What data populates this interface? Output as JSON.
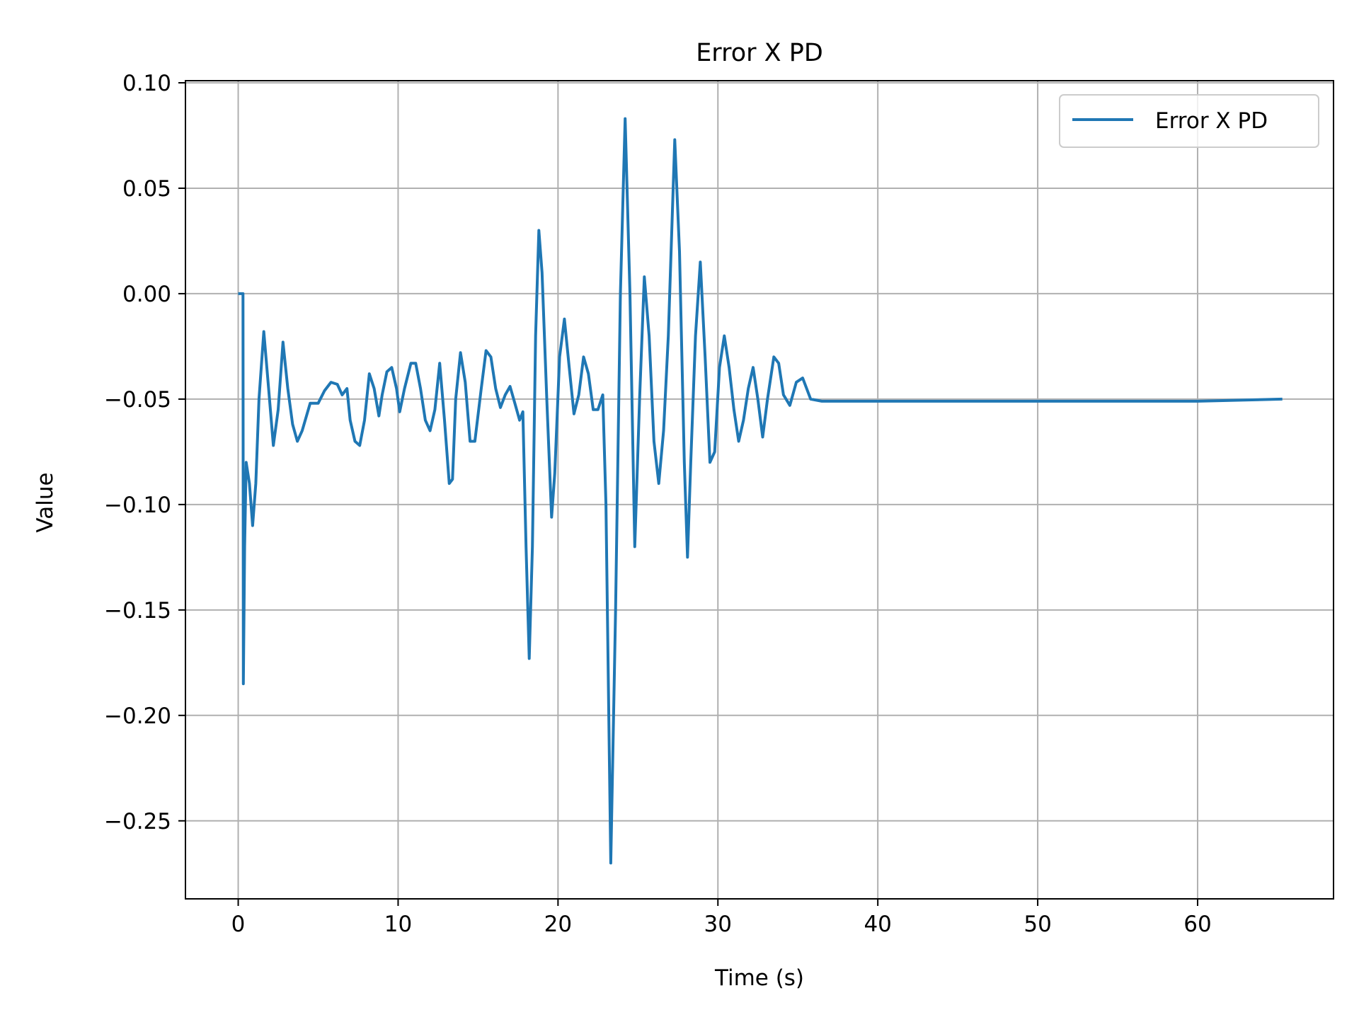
{
  "chart_data": {
    "type": "line",
    "title": "Error X PD",
    "xlabel": "Time (s)",
    "ylabel": "Value",
    "xlim": [
      -3.3,
      68.5
    ],
    "ylim": [
      -0.287,
      0.101
    ],
    "grid": true,
    "legend": {
      "position": "top-right"
    },
    "x_ticks": [
      {
        "value": 0,
        "label": "0"
      },
      {
        "value": 10,
        "label": "10"
      },
      {
        "value": 20,
        "label": "20"
      },
      {
        "value": 30,
        "label": "30"
      },
      {
        "value": 40,
        "label": "40"
      },
      {
        "value": 50,
        "label": "50"
      },
      {
        "value": 60,
        "label": "60"
      }
    ],
    "y_ticks": [
      {
        "value": 0.1,
        "label": "0.10"
      },
      {
        "value": 0.05,
        "label": "0.05"
      },
      {
        "value": 0.0,
        "label": "0.00"
      },
      {
        "value": -0.05,
        "label": "−0.05"
      },
      {
        "value": -0.1,
        "label": "−0.10"
      },
      {
        "value": -0.15,
        "label": "−0.15"
      },
      {
        "value": -0.2,
        "label": "−0.20"
      },
      {
        "value": -0.25,
        "label": "−0.25"
      }
    ],
    "series": [
      {
        "name": "Error X PD",
        "color": "#1f77b4",
        "points": [
          [
            0.0,
            0.0
          ],
          [
            0.3,
            0.0
          ],
          [
            0.32,
            -0.185
          ],
          [
            0.4,
            -0.12
          ],
          [
            0.5,
            -0.08
          ],
          [
            0.7,
            -0.09
          ],
          [
            0.9,
            -0.11
          ],
          [
            1.1,
            -0.09
          ],
          [
            1.3,
            -0.05
          ],
          [
            1.6,
            -0.018
          ],
          [
            1.9,
            -0.045
          ],
          [
            2.2,
            -0.072
          ],
          [
            2.5,
            -0.055
          ],
          [
            2.8,
            -0.023
          ],
          [
            3.1,
            -0.045
          ],
          [
            3.4,
            -0.062
          ],
          [
            3.7,
            -0.07
          ],
          [
            4.0,
            -0.065
          ],
          [
            4.5,
            -0.052
          ],
          [
            5.0,
            -0.052
          ],
          [
            5.4,
            -0.046
          ],
          [
            5.8,
            -0.042
          ],
          [
            6.2,
            -0.043
          ],
          [
            6.5,
            -0.048
          ],
          [
            6.8,
            -0.045
          ],
          [
            7.0,
            -0.06
          ],
          [
            7.3,
            -0.07
          ],
          [
            7.6,
            -0.072
          ],
          [
            7.9,
            -0.06
          ],
          [
            8.2,
            -0.038
          ],
          [
            8.5,
            -0.045
          ],
          [
            8.8,
            -0.058
          ],
          [
            9.0,
            -0.048
          ],
          [
            9.3,
            -0.037
          ],
          [
            9.6,
            -0.035
          ],
          [
            9.9,
            -0.045
          ],
          [
            10.1,
            -0.056
          ],
          [
            10.4,
            -0.045
          ],
          [
            10.8,
            -0.033
          ],
          [
            11.1,
            -0.033
          ],
          [
            11.4,
            -0.045
          ],
          [
            11.7,
            -0.06
          ],
          [
            12.0,
            -0.065
          ],
          [
            12.3,
            -0.055
          ],
          [
            12.6,
            -0.033
          ],
          [
            12.9,
            -0.06
          ],
          [
            13.2,
            -0.09
          ],
          [
            13.4,
            -0.088
          ],
          [
            13.6,
            -0.05
          ],
          [
            13.9,
            -0.028
          ],
          [
            14.2,
            -0.042
          ],
          [
            14.5,
            -0.07
          ],
          [
            14.8,
            -0.07
          ],
          [
            15.2,
            -0.045
          ],
          [
            15.5,
            -0.027
          ],
          [
            15.8,
            -0.03
          ],
          [
            16.1,
            -0.045
          ],
          [
            16.4,
            -0.054
          ],
          [
            16.7,
            -0.048
          ],
          [
            17.0,
            -0.044
          ],
          [
            17.3,
            -0.052
          ],
          [
            17.6,
            -0.06
          ],
          [
            17.8,
            -0.056
          ],
          [
            18.0,
            -0.12
          ],
          [
            18.2,
            -0.173
          ],
          [
            18.4,
            -0.12
          ],
          [
            18.6,
            -0.02
          ],
          [
            18.8,
            0.03
          ],
          [
            19.0,
            0.01
          ],
          [
            19.3,
            -0.05
          ],
          [
            19.6,
            -0.106
          ],
          [
            19.8,
            -0.085
          ],
          [
            20.1,
            -0.03
          ],
          [
            20.4,
            -0.012
          ],
          [
            20.7,
            -0.035
          ],
          [
            21.0,
            -0.057
          ],
          [
            21.3,
            -0.048
          ],
          [
            21.6,
            -0.03
          ],
          [
            21.9,
            -0.038
          ],
          [
            22.2,
            -0.055
          ],
          [
            22.5,
            -0.055
          ],
          [
            22.8,
            -0.048
          ],
          [
            23.0,
            -0.1
          ],
          [
            23.3,
            -0.27
          ],
          [
            23.6,
            -0.15
          ],
          [
            23.9,
            0.0
          ],
          [
            24.2,
            0.083
          ],
          [
            24.5,
            0.0
          ],
          [
            24.8,
            -0.12
          ],
          [
            25.1,
            -0.05
          ],
          [
            25.4,
            0.008
          ],
          [
            25.7,
            -0.02
          ],
          [
            26.0,
            -0.07
          ],
          [
            26.3,
            -0.09
          ],
          [
            26.6,
            -0.065
          ],
          [
            26.9,
            -0.02
          ],
          [
            27.3,
            0.073
          ],
          [
            27.6,
            0.02
          ],
          [
            27.9,
            -0.08
          ],
          [
            28.1,
            -0.125
          ],
          [
            28.3,
            -0.08
          ],
          [
            28.6,
            -0.02
          ],
          [
            28.9,
            0.015
          ],
          [
            29.2,
            -0.03
          ],
          [
            29.5,
            -0.08
          ],
          [
            29.8,
            -0.075
          ],
          [
            30.1,
            -0.035
          ],
          [
            30.4,
            -0.02
          ],
          [
            30.7,
            -0.035
          ],
          [
            31.0,
            -0.055
          ],
          [
            31.3,
            -0.07
          ],
          [
            31.6,
            -0.06
          ],
          [
            31.9,
            -0.045
          ],
          [
            32.2,
            -0.035
          ],
          [
            32.5,
            -0.05
          ],
          [
            32.8,
            -0.068
          ],
          [
            33.1,
            -0.05
          ],
          [
            33.5,
            -0.03
          ],
          [
            33.8,
            -0.033
          ],
          [
            34.1,
            -0.048
          ],
          [
            34.5,
            -0.053
          ],
          [
            34.9,
            -0.042
          ],
          [
            35.3,
            -0.04
          ],
          [
            35.8,
            -0.05
          ],
          [
            36.5,
            -0.051
          ],
          [
            40.0,
            -0.051
          ],
          [
            45.0,
            -0.051
          ],
          [
            50.0,
            -0.051
          ],
          [
            55.0,
            -0.051
          ],
          [
            60.0,
            -0.051
          ],
          [
            65.3,
            -0.05
          ]
        ]
      }
    ]
  }
}
